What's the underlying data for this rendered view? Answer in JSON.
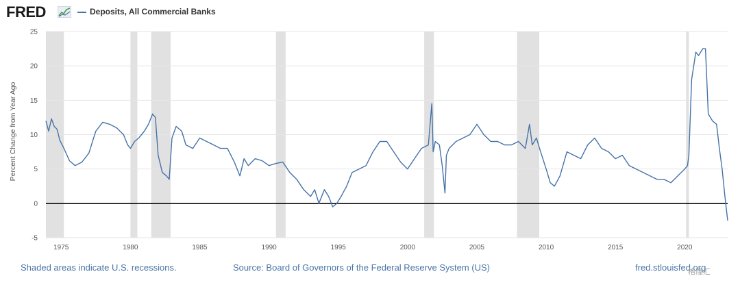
{
  "header": {
    "logo_text": "FRED",
    "legend_label": "Deposits, All Commercial Banks",
    "series_color": "#4572a7"
  },
  "footer": {
    "recession_note": "Shaded areas indicate U.S. recessions.",
    "source": "Source: Board of Governors of the Federal Reserve System (US)",
    "site": "fred.stlouisfed.org"
  },
  "watermark": "格隆汇",
  "chart_data": {
    "type": "line",
    "title": "",
    "xlabel": "",
    "ylabel": "Percent Change from Year Ago",
    "xlim": [
      1973.9,
      2023.1
    ],
    "ylim": [
      -5,
      25
    ],
    "x_ticks": [
      1975,
      1980,
      1985,
      1990,
      1995,
      2000,
      2005,
      2010,
      2015,
      2020
    ],
    "y_ticks": [
      -5,
      0,
      5,
      10,
      15,
      20,
      25
    ],
    "grid": "horizontal",
    "zero_line": true,
    "recessions": [
      [
        1973.9,
        1975.2
      ],
      [
        1980.0,
        1980.5
      ],
      [
        1981.5,
        1982.9
      ],
      [
        1990.5,
        1991.2
      ],
      [
        2001.2,
        2001.9
      ],
      [
        2007.9,
        2009.5
      ],
      [
        2020.1,
        2020.3
      ]
    ],
    "series": [
      {
        "x": [
          1973.9,
          1974.1,
          1974.3,
          1974.5,
          1974.7,
          1974.9,
          1975.2,
          1975.6,
          1976.0,
          1976.5,
          1977.0,
          1977.5,
          1978.0,
          1978.5,
          1979.0,
          1979.5,
          1979.8,
          1980.0,
          1980.3,
          1980.6,
          1981.0,
          1981.3,
          1981.6,
          1981.8,
          1982.0,
          1982.3,
          1982.6,
          1982.8,
          1983.0,
          1983.3,
          1983.7,
          1984.0,
          1984.5,
          1985.0,
          1985.5,
          1986.0,
          1986.5,
          1987.0,
          1987.5,
          1987.9,
          1988.2,
          1988.5,
          1989.0,
          1989.5,
          1990.0,
          1990.5,
          1991.0,
          1991.5,
          1992.0,
          1992.5,
          1993.0,
          1993.3,
          1993.6,
          1994.0,
          1994.3,
          1994.6,
          1994.9,
          1995.2,
          1995.6,
          1996.0,
          1996.5,
          1997.0,
          1997.5,
          1998.0,
          1998.5,
          1999.0,
          1999.5,
          2000.0,
          2000.5,
          2001.0,
          2001.5,
          2001.75,
          2001.85,
          2002.0,
          2002.3,
          2002.5,
          2002.7,
          2002.8,
          2003.0,
          2003.5,
          2004.0,
          2004.5,
          2005.0,
          2005.5,
          2006.0,
          2006.5,
          2007.0,
          2007.5,
          2008.0,
          2008.5,
          2008.8,
          2009.0,
          2009.3,
          2009.6,
          2010.0,
          2010.3,
          2010.6,
          2011.0,
          2011.5,
          2012.0,
          2012.5,
          2013.0,
          2013.5,
          2014.0,
          2014.5,
          2015.0,
          2015.5,
          2016.0,
          2016.5,
          2017.0,
          2017.5,
          2018.0,
          2018.5,
          2019.0,
          2019.5,
          2020.0,
          2020.2,
          2020.3,
          2020.5,
          2020.8,
          2021.0,
          2021.3,
          2021.5,
          2021.7,
          2022.0,
          2022.3,
          2022.5,
          2022.7,
          2022.9,
          2023.1
        ],
        "y": [
          12,
          10.5,
          12.3,
          11.2,
          10.8,
          9.2,
          8.0,
          6.2,
          5.5,
          6.0,
          7.3,
          10.5,
          11.8,
          11.5,
          11.0,
          10.0,
          8.5,
          8.0,
          9.0,
          9.5,
          10.5,
          11.5,
          13.0,
          12.5,
          7.0,
          4.5,
          4.0,
          3.5,
          9.5,
          11.2,
          10.5,
          8.5,
          8.0,
          9.5,
          9.0,
          8.5,
          8.0,
          8.0,
          6.0,
          4.0,
          6.5,
          5.5,
          6.5,
          6.2,
          5.5,
          5.8,
          6.0,
          4.5,
          3.5,
          2.0,
          1.0,
          2.0,
          0.0,
          2.0,
          1.0,
          -0.5,
          0.0,
          1.0,
          2.5,
          4.5,
          5.0,
          5.5,
          7.5,
          9.0,
          9.0,
          7.5,
          6.0,
          5.0,
          6.5,
          8.0,
          8.5,
          14.5,
          7.5,
          9.0,
          8.5,
          5.5,
          1.5,
          7.0,
          8.0,
          9.0,
          9.5,
          10.0,
          11.5,
          10.0,
          9.0,
          9.0,
          8.5,
          8.5,
          9.0,
          8.0,
          11.5,
          8.5,
          9.5,
          7.5,
          5.0,
          3.0,
          2.5,
          4.0,
          7.5,
          7.0,
          6.5,
          8.5,
          9.5,
          8.0,
          7.5,
          6.5,
          7.0,
          5.5,
          5.0,
          4.5,
          4.0,
          3.5,
          3.5,
          3.0,
          4.0,
          5.0,
          5.5,
          7.0,
          18.0,
          22.0,
          21.5,
          22.5,
          22.5,
          13.0,
          12.0,
          11.5,
          8.0,
          5.0,
          1.0,
          -2.5
        ]
      }
    ]
  }
}
